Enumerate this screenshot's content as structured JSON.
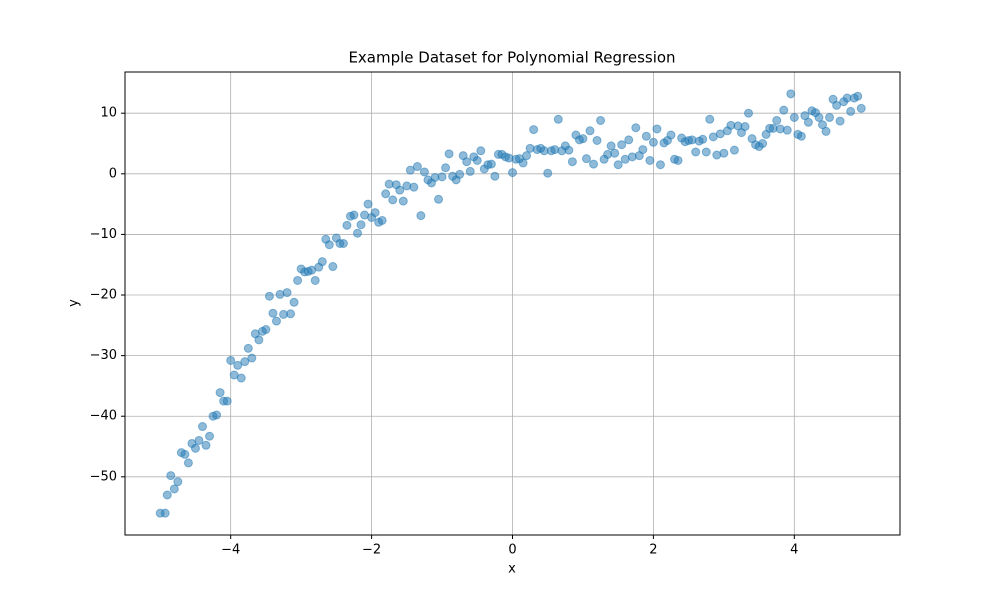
{
  "chart_data": {
    "type": "scatter",
    "title": "Example Dataset for Polynomial Regression",
    "x_label": "x",
    "y_label": "y",
    "color": "#1f77b4",
    "grid": true,
    "xlim": [
      -5.5,
      5.5
    ],
    "ylim": [
      -59.6,
      16.8
    ],
    "xticks": [
      {
        "value": -4,
        "label": "−4"
      },
      {
        "value": -2,
        "label": "−2"
      },
      0,
      2,
      4
    ],
    "yticks": [
      {
        "value": -50,
        "label": "−50"
      },
      {
        "value": -40,
        "label": "−40"
      },
      {
        "value": -30,
        "label": "−30"
      },
      {
        "value": -20,
        "label": "−20"
      },
      {
        "value": -10,
        "label": "−10"
      },
      0,
      10
    ],
    "x": [
      -5.0,
      -4.93,
      -4.9,
      -4.85,
      -4.8,
      -4.75,
      -4.7,
      -4.65,
      -4.6,
      -4.55,
      -4.5,
      -4.45,
      -4.4,
      -4.35,
      -4.3,
      -4.25,
      -4.2,
      -4.15,
      -4.1,
      -4.05,
      -4.0,
      -3.95,
      -3.9,
      -3.85,
      -3.8,
      -3.75,
      -3.7,
      -3.65,
      -3.6,
      -3.55,
      -3.5,
      -3.45,
      -3.4,
      -3.35,
      -3.3,
      -3.25,
      -3.2,
      -3.15,
      -3.1,
      -3.05,
      -3.0,
      -2.95,
      -2.9,
      -2.85,
      -2.8,
      -2.75,
      -2.7,
      -2.65,
      -2.6,
      -2.55,
      -2.5,
      -2.45,
      -2.4,
      -2.35,
      -2.3,
      -2.25,
      -2.2,
      -2.15,
      -2.1,
      -2.05,
      -2.0,
      -1.95,
      -1.9,
      -1.85,
      -1.8,
      -1.75,
      -1.7,
      -1.65,
      -1.6,
      -1.55,
      -1.5,
      -1.45,
      -1.4,
      -1.35,
      -1.3,
      -1.25,
      -1.2,
      -1.15,
      -1.1,
      -1.05,
      -1.0,
      -0.95,
      -0.9,
      -0.85,
      -0.8,
      -0.75,
      -0.7,
      -0.65,
      -0.6,
      -0.55,
      -0.5,
      -0.45,
      -0.4,
      -0.35,
      -0.3,
      -0.25,
      -0.2,
      -0.15,
      -0.1,
      -0.05,
      0.0,
      0.05,
      0.1,
      0.15,
      0.2,
      0.25,
      0.3,
      0.35,
      0.4,
      0.45,
      0.5,
      0.55,
      0.6,
      0.65,
      0.7,
      0.75,
      0.8,
      0.85,
      0.9,
      0.95,
      1.0,
      1.05,
      1.1,
      1.15,
      1.2,
      1.25,
      1.3,
      1.35,
      1.4,
      1.45,
      1.5,
      1.55,
      1.6,
      1.65,
      1.7,
      1.75,
      1.8,
      1.85,
      1.9,
      1.95,
      2.0,
      2.05,
      2.1,
      2.15,
      2.2,
      2.25,
      2.3,
      2.35,
      2.4,
      2.45,
      2.5,
      2.55,
      2.6,
      2.65,
      2.7,
      2.75,
      2.8,
      2.85,
      2.9,
      2.95,
      3.0,
      3.05,
      3.1,
      3.15,
      3.2,
      3.25,
      3.3,
      3.35,
      3.4,
      3.45,
      3.5,
      3.55,
      3.6,
      3.65,
      3.7,
      3.75,
      3.8,
      3.85,
      3.9,
      3.95,
      4.0,
      4.05,
      4.1,
      4.15,
      4.2,
      4.25,
      4.3,
      4.35,
      4.4,
      4.45,
      4.5,
      4.55,
      4.6,
      4.65,
      4.7,
      4.75,
      4.8,
      4.85,
      4.9,
      4.95
    ],
    "values": [
      -56,
      -56,
      -53,
      -49.8,
      -52,
      -50.8,
      -46,
      -46.3,
      -47.7,
      -44.5,
      -45.3,
      -44,
      -41.7,
      -44.8,
      -43.3,
      -40,
      -39.8,
      -36.1,
      -37.5,
      -37.5,
      -30.8,
      -33.2,
      -31.6,
      -33.7,
      -31,
      -28.8,
      -30.4,
      -26.4,
      -27.4,
      -26,
      -25.7,
      -20.2,
      -23,
      -24.3,
      -19.9,
      -23.2,
      -19.6,
      -23.1,
      -21.2,
      -17.6,
      -15.7,
      -16.2,
      -16.1,
      -15.9,
      -17.6,
      -15.4,
      -14.5,
      -10.8,
      -11.7,
      -15.3,
      -10.6,
      -11.5,
      -11.5,
      -8.5,
      -7,
      -6.8,
      -9.8,
      -8.4,
      -6.8,
      -5,
      -7.2,
      -6.4,
      -8,
      -7.7,
      -3.3,
      -1.7,
      -4.3,
      -1.8,
      -2.7,
      -4.5,
      -2,
      0.6,
      -2.2,
      1.2,
      -6.9,
      0.3,
      -1,
      -1.5,
      -0.6,
      -4.2,
      -0.5,
      1,
      3.3,
      -0.4,
      -1,
      -0.1,
      3,
      2,
      0.4,
      2.8,
      2.2,
      3.8,
      0.8,
      1.5,
      1.6,
      -0.4,
      3.2,
      3.2,
      2.8,
      2.6,
      0.2,
      2.4,
      2.5,
      1.8,
      3,
      4.2,
      7.3,
      4,
      4.2,
      3.8,
      0.1,
      3.8,
      4,
      9,
      3.8,
      4.6,
      3.9,
      2,
      6.4,
      5.6,
      5.8,
      2.5,
      7.1,
      1.6,
      5.5,
      8.8,
      2.4,
      3.2,
      4.6,
      3.4,
      1.5,
      4.8,
      2.4,
      5.6,
      2.8,
      7.6,
      3,
      4,
      6.2,
      2.2,
      5.2,
      7.4,
      1.5,
      5.1,
      5.5,
      6.4,
      2.4,
      2.2,
      5.9,
      5.3,
      5.5,
      5.6,
      3.6,
      5.4,
      5.7,
      3.6,
      9,
      6.1,
      3.1,
      6.6,
      3.4,
      7.1,
      8,
      3.9,
      7.9,
      6.8,
      7.8,
      10,
      5.8,
      4.8,
      4.5,
      5,
      6.5,
      7.5,
      7.5,
      8.8,
      7.4,
      10.5,
      7.2,
      13.2,
      9.3,
      6.5,
      6.2,
      9.6,
      8.5,
      10.4,
      10.1,
      9.3,
      8.1,
      7,
      9.3,
      12.3,
      11.3,
      8.7,
      11.9,
      12.5,
      10.3,
      12.5,
      12.8,
      10.8
    ]
  }
}
